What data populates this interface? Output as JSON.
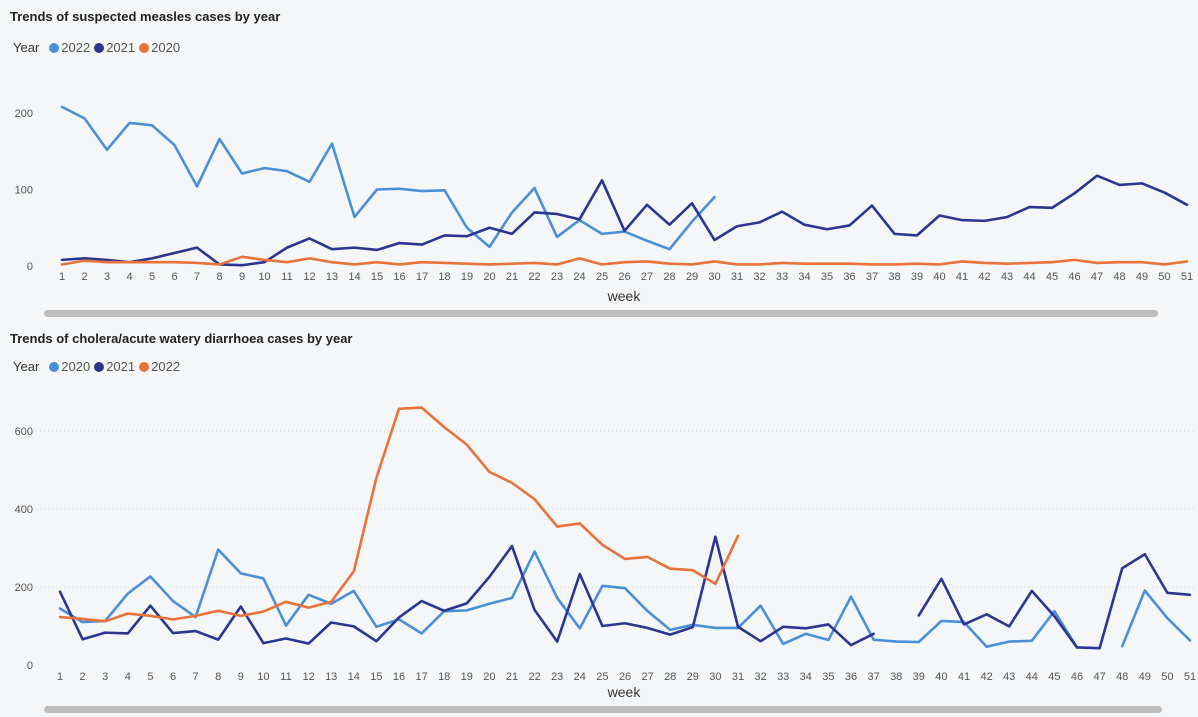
{
  "chart_data": [
    {
      "type": "line",
      "title": "Trends of suspected  measles cases by year",
      "legend_title": "Year",
      "xlabel": "week",
      "ylabel": "",
      "x": [
        1,
        2,
        3,
        4,
        5,
        6,
        7,
        8,
        9,
        10,
        11,
        12,
        13,
        14,
        15,
        16,
        17,
        18,
        19,
        20,
        21,
        22,
        23,
        24,
        25,
        26,
        27,
        28,
        29,
        30,
        31,
        32,
        33,
        34,
        35,
        36,
        37,
        38,
        39,
        40,
        41,
        42,
        43,
        44,
        45,
        46,
        47,
        48,
        49,
        50,
        51
      ],
      "yticks": [
        {
          "value": 0,
          "label": "0"
        },
        {
          "value": 100,
          "label": "100"
        },
        {
          "value": 200,
          "label": "200"
        }
      ],
      "ylim": [
        0,
        220
      ],
      "grid": false,
      "series": [
        {
          "name": "2022",
          "color": "#4a90d9",
          "values": [
            208,
            193,
            152,
            187,
            184,
            158,
            104,
            166,
            121,
            128,
            124,
            110,
            160,
            64,
            100,
            101,
            98,
            99,
            50,
            25,
            70,
            102,
            38,
            60,
            42,
            45,
            33,
            22,
            58,
            90,
            null,
            null,
            null,
            null,
            null,
            null,
            null,
            null,
            null,
            null,
            null,
            null,
            null,
            null,
            null,
            null,
            null,
            null,
            null,
            null,
            null
          ]
        },
        {
          "name": "2021",
          "color": "#2c3590",
          "values": [
            8,
            10,
            8,
            5,
            10,
            17,
            24,
            2,
            1,
            5,
            24,
            36,
            22,
            24,
            21,
            30,
            28,
            40,
            39,
            50,
            42,
            70,
            68,
            61,
            112,
            46,
            80,
            54,
            82,
            34,
            52,
            57,
            71,
            54,
            48,
            53,
            79,
            42,
            40,
            66,
            60,
            59,
            64,
            77,
            76,
            95,
            118,
            106,
            108,
            96,
            80
          ]
        },
        {
          "name": "2020",
          "color": "#e8733a",
          "values": [
            2,
            7,
            5,
            5,
            5,
            5,
            4,
            2,
            12,
            8,
            5,
            10,
            5,
            2,
            5,
            2,
            5,
            4,
            3,
            2,
            3,
            4,
            2,
            10,
            2,
            5,
            6,
            3,
            2,
            6,
            2,
            2,
            4,
            3,
            3,
            3,
            2,
            2,
            3,
            2,
            6,
            4,
            3,
            4,
            5,
            8,
            4,
            5,
            5,
            2,
            6
          ]
        }
      ]
    },
    {
      "type": "line",
      "title": "Trends of cholera/acute watery diarrhoea  cases by year",
      "legend_title": "Year",
      "xlabel": "week",
      "ylabel": "",
      "x": [
        1,
        2,
        3,
        4,
        5,
        6,
        7,
        8,
        9,
        10,
        11,
        12,
        13,
        14,
        15,
        16,
        17,
        18,
        19,
        20,
        21,
        22,
        23,
        24,
        25,
        26,
        27,
        28,
        29,
        30,
        31,
        32,
        33,
        34,
        35,
        36,
        37,
        38,
        39,
        40,
        41,
        42,
        43,
        44,
        45,
        46,
        47,
        48,
        49,
        50,
        51
      ],
      "yticks": [
        {
          "value": 0,
          "label": "0"
        },
        {
          "value": 200,
          "label": "200"
        },
        {
          "value": 400,
          "label": "400"
        },
        {
          "value": 600,
          "label": "600"
        }
      ],
      "ylim": [
        0,
        680
      ],
      "grid": true,
      "series": [
        {
          "name": "2020",
          "color": "#4a90d9",
          "values": [
            145,
            110,
            113,
            183,
            227,
            164,
            123,
            296,
            235,
            222,
            101,
            180,
            157,
            190,
            98,
            117,
            81,
            138,
            140,
            157,
            172,
            291,
            172,
            94,
            203,
            197,
            138,
            90,
            103,
            95,
            95,
            152,
            54,
            80,
            64,
            175,
            65,
            60,
            59,
            113,
            110,
            47,
            60,
            62,
            138,
            45,
            null,
            48,
            191,
            120,
            63
          ]
        },
        {
          "name": "2021",
          "color": "#2c3590",
          "values": [
            188,
            66,
            83,
            81,
            152,
            82,
            87,
            65,
            150,
            56,
            68,
            55,
            109,
            99,
            61,
            122,
            164,
            139,
            158,
            226,
            305,
            141,
            60,
            233,
            100,
            107,
            95,
            78,
            97,
            329,
            98,
            61,
            98,
            94,
            104,
            51,
            80,
            null,
            127,
            221,
            104,
            130,
            99,
            190,
            125,
            45,
            43,
            248,
            284,
            185,
            180
          ]
        },
        {
          "name": "2022",
          "color": "#e8733a",
          "values": [
            123,
            118,
            112,
            132,
            126,
            117,
            126,
            139,
            126,
            137,
            162,
            147,
            162,
            240,
            480,
            657,
            660,
            610,
            565,
            495,
            467,
            425,
            355,
            363,
            308,
            272,
            277,
            247,
            243,
            208,
            331,
            null,
            null,
            null,
            null,
            null,
            null,
            null,
            null,
            null,
            null,
            null,
            null,
            null,
            null,
            null,
            null,
            null,
            null,
            null,
            null
          ]
        }
      ]
    }
  ]
}
